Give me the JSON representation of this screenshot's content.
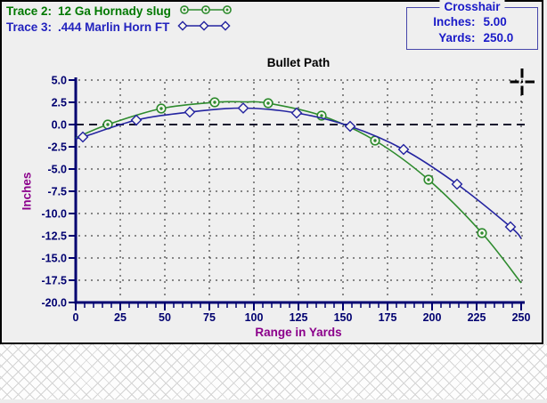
{
  "legend": {
    "items": [
      {
        "label": "Trace 2:",
        "name": "12 Ga Hornady slug",
        "text_color": "#007800",
        "line_color": "#2E8B2E",
        "marker": "circle-dot"
      },
      {
        "label": "Trace 3:",
        "name": ".444 Marlin Horn FT",
        "text_color": "#2222BE",
        "line_color": "#2424A0",
        "marker": "diamond"
      }
    ]
  },
  "crosshair_box": {
    "title": "Crosshair",
    "rows": [
      {
        "label": "Inches:",
        "value": "5.00"
      },
      {
        "label": "Yards:",
        "value": "250.0"
      }
    ]
  },
  "chart_data": {
    "type": "line",
    "title": "Bullet Path",
    "xlabel": "Range in Yards",
    "ylabel": "Inches",
    "xlim": [
      0,
      250
    ],
    "ylim": [
      -20.0,
      5.0
    ],
    "x_ticks": [
      0,
      25,
      50,
      75,
      100,
      125,
      150,
      175,
      200,
      225,
      250
    ],
    "x_minor_step": 5,
    "y_ticks": [
      5.0,
      2.5,
      0.0,
      -2.5,
      -5.0,
      -7.5,
      -10.0,
      -12.5,
      -15.0,
      -17.5,
      -20.0
    ],
    "grid": "dotted",
    "zero_line_dashed": true,
    "axis_color": "#000070",
    "grid_dot_color": "#3C3C3C",
    "series": [
      {
        "name": "12 Ga Hornady slug",
        "color": "#2E8B2E",
        "marker": "circle-dot",
        "points": [
          [
            0,
            -1.5
          ],
          [
            18,
            0.0
          ],
          [
            48,
            1.8
          ],
          [
            78,
            2.5
          ],
          [
            95,
            2.55
          ],
          [
            108,
            2.4
          ],
          [
            138,
            1.0
          ],
          [
            168,
            -1.8
          ],
          [
            198,
            -6.2
          ],
          [
            228,
            -12.2
          ],
          [
            250,
            -17.8
          ]
        ],
        "marker_points": [
          [
            18,
            0.0
          ],
          [
            48,
            1.8
          ],
          [
            78,
            2.5
          ],
          [
            108,
            2.4
          ],
          [
            138,
            1.0
          ],
          [
            168,
            -1.8
          ],
          [
            198,
            -6.2
          ],
          [
            228,
            -12.2
          ]
        ]
      },
      {
        "name": ".444 Marlin Horn FT",
        "color": "#2424A0",
        "marker": "diamond",
        "points": [
          [
            0,
            -1.5
          ],
          [
            4,
            -1.4
          ],
          [
            34,
            0.5
          ],
          [
            64,
            1.4
          ],
          [
            94,
            1.85
          ],
          [
            124,
            1.3
          ],
          [
            154,
            -0.2
          ],
          [
            184,
            -2.8
          ],
          [
            214,
            -6.7
          ],
          [
            244,
            -11.5
          ],
          [
            250,
            -12.8
          ]
        ],
        "marker_points": [
          [
            4,
            -1.4
          ],
          [
            34,
            0.5
          ],
          [
            64,
            1.4
          ],
          [
            94,
            1.85
          ],
          [
            124,
            1.3
          ],
          [
            154,
            -0.2
          ],
          [
            184,
            -2.8
          ],
          [
            214,
            -6.7
          ],
          [
            244,
            -11.5
          ]
        ]
      }
    ]
  }
}
